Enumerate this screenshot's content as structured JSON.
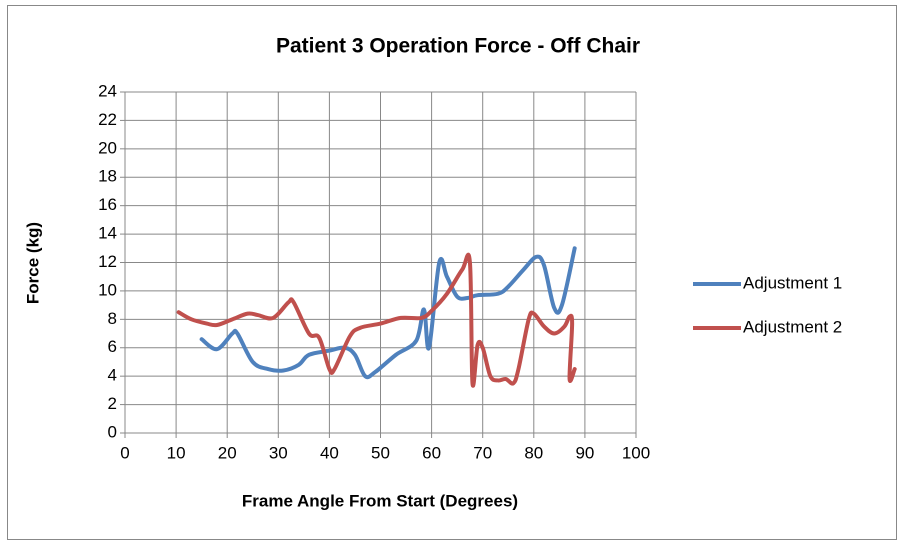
{
  "chart_data": {
    "type": "line",
    "title": "Patient 3 Operation Force - Off Chair",
    "x_label": "Frame Angle From Start (Degrees)",
    "y_label": "Force (kg)",
    "xlim": [
      0,
      100
    ],
    "xticks": [
      0,
      10,
      20,
      30,
      40,
      50,
      60,
      70,
      80,
      90,
      100
    ],
    "ylim": [
      0,
      24
    ],
    "yticks": [
      0,
      2,
      4,
      6,
      8,
      10,
      12,
      14,
      16,
      18,
      20,
      22,
      24
    ],
    "grid": true,
    "legend": "right",
    "series": [
      {
        "name": "Adjustment 1",
        "color": "#4f81bd",
        "x": [
          15,
          18,
          21,
          22,
          25,
          28,
          31,
          34,
          36,
          40,
          43,
          45,
          47,
          49,
          53,
          57,
          58.5,
          59.5,
          61.5,
          63,
          65,
          67,
          69,
          73,
          75,
          78,
          80.5,
          82,
          84,
          85.5,
          88
        ],
        "values": [
          6.6,
          5.9,
          7.0,
          7.0,
          5.0,
          4.5,
          4.4,
          4.8,
          5.5,
          5.8,
          6.0,
          5.5,
          4.0,
          4.3,
          5.5,
          6.5,
          8.7,
          6.0,
          12.0,
          11.0,
          9.6,
          9.5,
          9.7,
          9.8,
          10.3,
          11.5,
          12.4,
          11.8,
          8.8,
          9.0,
          13.0
        ]
      },
      {
        "name": "Adjustment 2",
        "color": "#c0504d",
        "x": [
          10.5,
          13,
          16,
          18,
          21,
          24,
          26,
          29,
          32,
          33,
          36,
          38,
          40,
          41,
          44,
          46,
          50,
          54,
          58,
          60,
          63,
          66,
          67.5,
          68,
          69,
          70,
          71.5,
          73,
          74.5,
          76,
          77,
          79,
          80,
          82,
          84,
          86,
          87,
          87.5,
          87,
          88
        ],
        "values": [
          8.5,
          8.0,
          7.7,
          7.6,
          8.0,
          8.4,
          8.3,
          8.1,
          9.2,
          9.2,
          7.0,
          6.7,
          4.5,
          4.5,
          6.8,
          7.4,
          7.7,
          8.1,
          8.1,
          8.6,
          9.8,
          11.5,
          12.0,
          3.5,
          6.2,
          6.0,
          4.0,
          3.7,
          3.8,
          3.5,
          4.5,
          8.0,
          8.4,
          7.5,
          7.0,
          7.5,
          8.2,
          7.7,
          3.8,
          4.5
        ]
      }
    ]
  }
}
